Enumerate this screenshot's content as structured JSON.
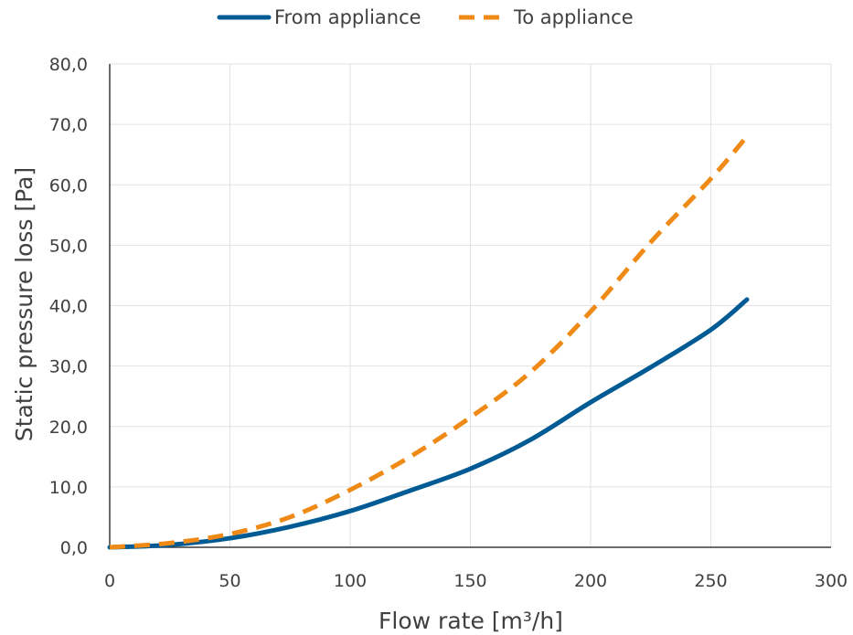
{
  "chart_data": {
    "type": "line",
    "title": "",
    "xlabel": "Flow rate [m³/h]",
    "ylabel": "Static pressure loss [Pa]",
    "xlim": [
      0,
      300
    ],
    "ylim": [
      0,
      80
    ],
    "x_ticks": [
      0,
      50,
      100,
      150,
      200,
      250,
      300
    ],
    "x_tick_labels": [
      "0",
      "50",
      "100",
      "150",
      "200",
      "250",
      "300"
    ],
    "y_ticks": [
      0,
      10,
      20,
      30,
      40,
      50,
      60,
      70,
      80
    ],
    "y_tick_labels": [
      "0,0",
      "10,0",
      "20,0",
      "30,0",
      "40,0",
      "50,0",
      "60,0",
      "70,0",
      "80,0"
    ],
    "grid": true,
    "legend_position": "top-center",
    "series": [
      {
        "name": "From appliance",
        "color": "#005b94",
        "style": "solid",
        "points": [
          [
            0,
            0.0
          ],
          [
            25,
            0.4
          ],
          [
            50,
            1.5
          ],
          [
            75,
            3.4
          ],
          [
            100,
            6.0
          ],
          [
            125,
            9.4
          ],
          [
            150,
            13.0
          ],
          [
            175,
            17.8
          ],
          [
            200,
            24.0
          ],
          [
            225,
            29.8
          ],
          [
            250,
            36.0
          ],
          [
            265,
            41.0
          ]
        ]
      },
      {
        "name": "To appliance",
        "color": "#ef8a17",
        "style": "dashed",
        "points": [
          [
            0,
            0.0
          ],
          [
            25,
            0.7
          ],
          [
            50,
            2.2
          ],
          [
            75,
            5.0
          ],
          [
            100,
            9.5
          ],
          [
            125,
            15.0
          ],
          [
            150,
            21.5
          ],
          [
            175,
            29.0
          ],
          [
            200,
            39.0
          ],
          [
            225,
            50.5
          ],
          [
            250,
            61.0
          ],
          [
            265,
            68.0
          ]
        ]
      }
    ]
  }
}
